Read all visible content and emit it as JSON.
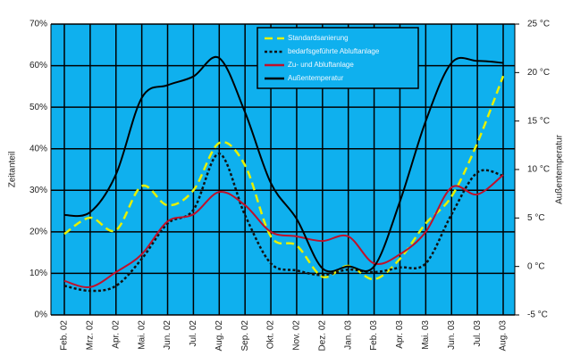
{
  "chart_data": {
    "type": "line",
    "categories": [
      "Feb. 02",
      "Mrz. 02",
      "Apr. 02",
      "Mai. 02",
      "Jun. 02",
      "Jul. 02",
      "Aug. 02",
      "Sep. 02",
      "Okt. 02",
      "Nov. 02",
      "Dez. 02",
      "Jan. 03",
      "Feb. 03",
      "Apr. 03",
      "Mai. 03",
      "Jun. 03",
      "Jul. 03",
      "Aug. 03"
    ],
    "y_label": "Zeitanteil",
    "y2_label": "Außentemperatur",
    "ylim": [
      0,
      70
    ],
    "yticks": [
      {
        "value": 0,
        "label": "0%"
      },
      {
        "value": 10,
        "label": "10%"
      },
      {
        "value": 20,
        "label": "20%"
      },
      {
        "value": 30,
        "label": "30%"
      },
      {
        "value": 40,
        "label": "40%"
      },
      {
        "value": 50,
        "label": "50%"
      },
      {
        "value": 60,
        "label": "60%"
      },
      {
        "value": 70,
        "label": "70%"
      }
    ],
    "y2lim": [
      -5,
      25
    ],
    "y2ticks": [
      {
        "value": -5,
        "label": "-5 °C"
      },
      {
        "value": 0,
        "label": "0 °C"
      },
      {
        "value": 5,
        "label": "5 °C"
      },
      {
        "value": 10,
        "label": "10 °C"
      },
      {
        "value": 15,
        "label": "15 °C"
      },
      {
        "value": 20,
        "label": "20 °C"
      },
      {
        "value": 25,
        "label": "25 °C"
      }
    ],
    "grid": true,
    "background": "#0fb0ee",
    "legend": "top-center",
    "series": [
      {
        "name": "Standardsanierung",
        "color": "#e6f000",
        "style": "dashed",
        "values": [
          19.5,
          23.4,
          20.4,
          31,
          26.4,
          30,
          41.4,
          36,
          18.9,
          16.7,
          9.2,
          11.8,
          8.6,
          13.5,
          22,
          28.5,
          41.4,
          57.5
        ]
      },
      {
        "name": "bedarfsgeführte Abluftanlage",
        "color": "#111111",
        "style": "dotted",
        "values": [
          7,
          5.8,
          7,
          13.5,
          22,
          25.3,
          38.8,
          24,
          12.4,
          10.7,
          9.6,
          10.9,
          10.3,
          11.4,
          12.4,
          24.2,
          34.3,
          33.5
        ]
      },
      {
        "name": "Zu- und Abluftanlage",
        "color": "#c0102a",
        "style": "solid",
        "values": [
          8.2,
          6.7,
          10.3,
          14.6,
          22.5,
          24.2,
          29.6,
          26.4,
          20,
          18.9,
          17.8,
          18.9,
          12.4,
          14.6,
          20,
          30.7,
          29,
          33.7
        ]
      },
      {
        "name": "Außentemperatur",
        "color": "#000000",
        "style": "solid",
        "axis": "y2",
        "values": [
          5.3,
          5.6,
          9.5,
          17.4,
          18.7,
          19.6,
          21.5,
          15.9,
          8.6,
          4.9,
          -0.2,
          0,
          0,
          6.7,
          15,
          21,
          21.2,
          21
        ]
      }
    ]
  }
}
